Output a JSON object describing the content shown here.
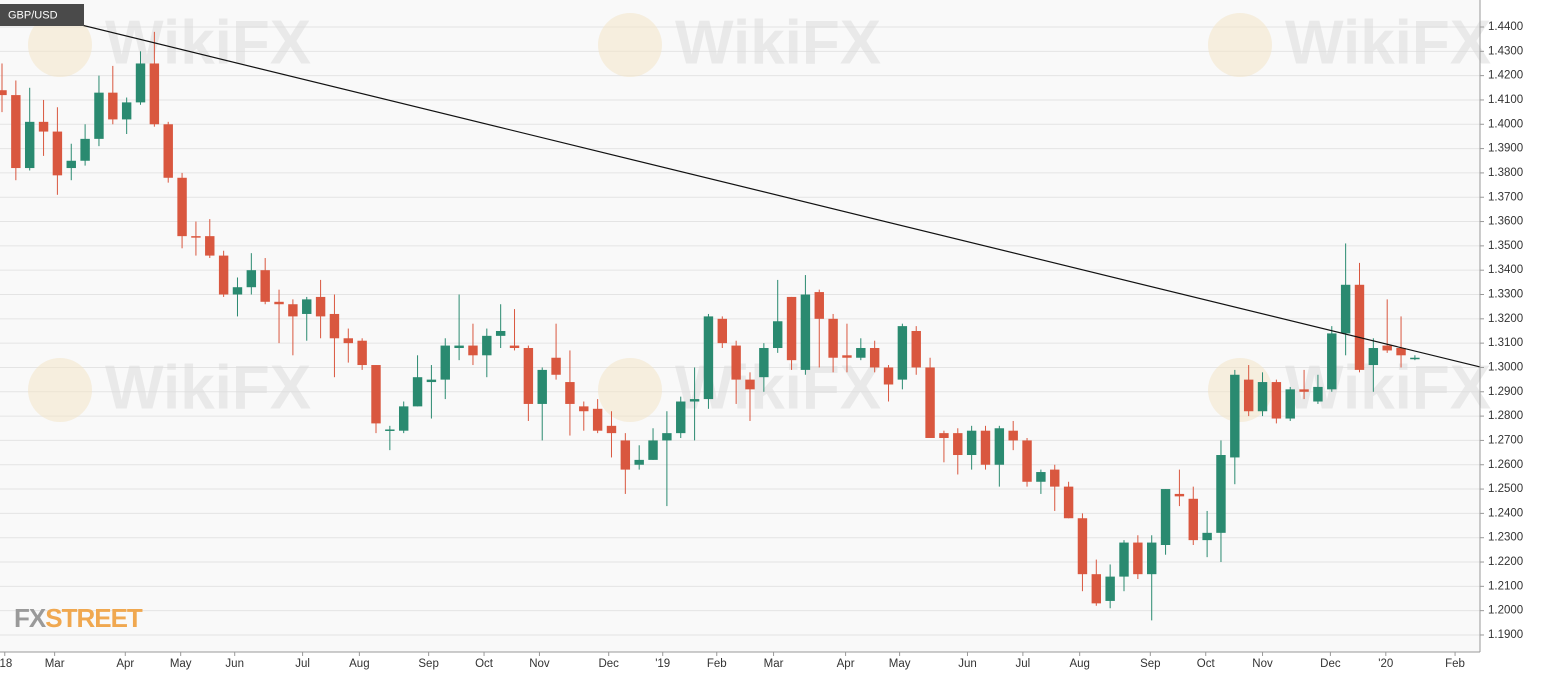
{
  "chart_data": {
    "type": "candlestick",
    "title": "GBP/USD",
    "watermark": "WikiFX",
    "logo": [
      "FX",
      "STREET"
    ],
    "up_color": "#2a8a70",
    "down_color": "#d9573f",
    "trend_color": "#111111",
    "grid": true,
    "xlim": [
      -0.144,
      106.7
    ],
    "ylim": [
      1.183,
      1.4511
    ],
    "open": [
      1.414,
      1.412,
      1.382,
      1.401,
      1.397,
      1.382,
      1.385,
      1.394,
      1.413,
      1.402,
      1.409,
      1.425,
      1.4,
      1.378,
      1.354,
      1.354,
      1.346,
      1.33,
      1.333,
      1.34,
      1.327,
      1.326,
      1.322,
      1.329,
      1.322,
      1.312,
      1.311,
      1.301,
      1.274,
      1.274,
      1.284,
      1.294,
      1.295,
      1.308,
      1.309,
      1.305,
      1.313,
      1.309,
      1.308,
      1.285,
      1.304,
      1.294,
      1.284,
      1.283,
      1.276,
      1.27,
      1.26,
      1.262,
      1.27,
      1.273,
      1.286,
      1.287,
      1.32,
      1.309,
      1.295,
      1.296,
      1.308,
      1.329,
      1.299,
      1.331,
      1.32,
      1.305,
      1.304,
      1.308,
      1.3,
      1.295,
      1.315,
      1.3,
      1.273,
      1.273,
      1.264,
      1.274,
      1.26,
      1.274,
      1.27,
      1.253,
      1.258,
      1.251,
      1.238,
      1.215,
      1.204,
      1.214,
      1.228,
      1.215,
      1.227,
      1.248,
      1.246,
      1.229,
      1.232,
      1.263,
      1.295,
      1.282,
      1.294,
      1.279,
      1.291,
      1.286,
      1.291,
      1.314,
      1.334,
      1.301,
      1.309,
      1.308,
      1.3035
    ],
    "high": [
      1.425,
      1.418,
      1.415,
      1.41,
      1.407,
      1.392,
      1.4,
      1.42,
      1.424,
      1.411,
      1.43,
      1.438,
      1.401,
      1.38,
      1.36,
      1.361,
      1.348,
      1.337,
      1.347,
      1.345,
      1.332,
      1.328,
      1.329,
      1.336,
      1.33,
      1.316,
      1.312,
      1.301,
      1.276,
      1.286,
      1.305,
      1.301,
      1.312,
      1.33,
      1.318,
      1.316,
      1.326,
      1.324,
      1.309,
      1.3,
      1.318,
      1.307,
      1.286,
      1.287,
      1.282,
      1.273,
      1.268,
      1.275,
      1.282,
      1.288,
      1.3,
      1.322,
      1.321,
      1.311,
      1.298,
      1.31,
      1.336,
      1.329,
      1.338,
      1.332,
      1.322,
      1.318,
      1.312,
      1.311,
      1.301,
      1.318,
      1.317,
      1.304,
      1.274,
      1.275,
      1.276,
      1.276,
      1.276,
      1.278,
      1.271,
      1.258,
      1.26,
      1.253,
      1.24,
      1.221,
      1.219,
      1.229,
      1.231,
      1.231,
      1.25,
      1.258,
      1.251,
      1.241,
      1.27,
      1.299,
      1.301,
      1.298,
      1.295,
      1.292,
      1.299,
      1.297,
      1.317,
      1.351,
      1.343,
      1.312,
      1.328,
      1.321,
      1.305
    ],
    "low": [
      1.405,
      1.377,
      1.381,
      1.387,
      1.371,
      1.377,
      1.383,
      1.391,
      1.4,
      1.396,
      1.408,
      1.399,
      1.376,
      1.349,
      1.346,
      1.345,
      1.329,
      1.321,
      1.33,
      1.326,
      1.31,
      1.305,
      1.311,
      1.312,
      1.296,
      1.302,
      1.299,
      1.273,
      1.266,
      1.273,
      1.284,
      1.279,
      1.287,
      1.303,
      1.301,
      1.296,
      1.308,
      1.307,
      1.278,
      1.27,
      1.295,
      1.272,
      1.274,
      1.273,
      1.263,
      1.248,
      1.258,
      1.262,
      1.243,
      1.271,
      1.27,
      1.283,
      1.308,
      1.285,
      1.278,
      1.29,
      1.306,
      1.299,
      1.297,
      1.3,
      1.298,
      1.298,
      1.303,
      1.298,
      1.286,
      1.291,
      1.297,
      1.271,
      1.261,
      1.256,
      1.258,
      1.258,
      1.251,
      1.266,
      1.251,
      1.248,
      1.241,
      1.238,
      1.208,
      1.202,
      1.201,
      1.208,
      1.213,
      1.196,
      1.223,
      1.243,
      1.227,
      1.222,
      1.22,
      1.252,
      1.28,
      1.28,
      1.277,
      1.278,
      1.287,
      1.285,
      1.29,
      1.305,
      1.298,
      1.29,
      1.306,
      1.3,
      1.303
    ],
    "close": [
      1.412,
      1.382,
      1.401,
      1.397,
      1.379,
      1.385,
      1.394,
      1.413,
      1.402,
      1.409,
      1.425,
      1.4,
      1.378,
      1.354,
      1.3535,
      1.346,
      1.33,
      1.333,
      1.34,
      1.327,
      1.326,
      1.321,
      1.328,
      1.321,
      1.312,
      1.31,
      1.301,
      1.277,
      1.2745,
      1.284,
      1.296,
      1.295,
      1.309,
      1.309,
      1.305,
      1.313,
      1.315,
      1.308,
      1.285,
      1.299,
      1.297,
      1.285,
      1.282,
      1.274,
      1.273,
      1.258,
      1.262,
      1.27,
      1.273,
      1.286,
      1.287,
      1.321,
      1.31,
      1.295,
      1.291,
      1.308,
      1.319,
      1.303,
      1.33,
      1.32,
      1.304,
      1.304,
      1.308,
      1.3,
      1.293,
      1.317,
      1.3,
      1.271,
      1.271,
      1.264,
      1.274,
      1.26,
      1.275,
      1.27,
      1.253,
      1.257,
      1.251,
      1.238,
      1.215,
      1.203,
      1.214,
      1.228,
      1.215,
      1.228,
      1.25,
      1.247,
      1.229,
      1.232,
      1.264,
      1.297,
      1.282,
      1.294,
      1.279,
      1.291,
      1.29,
      1.292,
      1.314,
      1.334,
      1.299,
      1.308,
      1.307,
      1.305,
      1.304
    ],
    "trendline": {
      "x": [
        -0.144,
        106.7
      ],
      "y": [
        1.449,
        1.3002
      ]
    },
    "yticks": [
      {
        "value": 1.19,
        "label": "1.1900"
      },
      {
        "value": 1.2,
        "label": "1.2000"
      },
      {
        "value": 1.21,
        "label": "1.2100"
      },
      {
        "value": 1.22,
        "label": "1.2200"
      },
      {
        "value": 1.23,
        "label": "1.2300"
      },
      {
        "value": 1.24,
        "label": "1.2400"
      },
      {
        "value": 1.25,
        "label": "1.2500"
      },
      {
        "value": 1.26,
        "label": "1.2600"
      },
      {
        "value": 1.27,
        "label": "1.2700"
      },
      {
        "value": 1.28,
        "label": "1.2800"
      },
      {
        "value": 1.29,
        "label": "1.2900"
      },
      {
        "value": 1.3,
        "label": "1.3000"
      },
      {
        "value": 1.31,
        "label": "1.3100"
      },
      {
        "value": 1.32,
        "label": "1.3200"
      },
      {
        "value": 1.33,
        "label": "1.3300"
      },
      {
        "value": 1.34,
        "label": "1.3400"
      },
      {
        "value": 1.35,
        "label": "1.3500"
      },
      {
        "value": 1.36,
        "label": "1.3600"
      },
      {
        "value": 1.37,
        "label": "1.3700"
      },
      {
        "value": 1.38,
        "label": "1.3800"
      },
      {
        "value": 1.39,
        "label": "1.3900"
      },
      {
        "value": 1.4,
        "label": "1.4000"
      },
      {
        "value": 1.41,
        "label": "1.4100"
      },
      {
        "value": 1.42,
        "label": "1.4200"
      },
      {
        "value": 1.43,
        "label": "1.4300"
      },
      {
        "value": 1.44,
        "label": "1.4400"
      }
    ],
    "xticks": [
      {
        "value": 0.2,
        "label": "'18"
      },
      {
        "value": 3.8,
        "label": "Mar"
      },
      {
        "value": 8.9,
        "label": "Apr"
      },
      {
        "value": 12.9,
        "label": "May"
      },
      {
        "value": 16.8,
        "label": "Jun"
      },
      {
        "value": 21.7,
        "label": "Jul"
      },
      {
        "value": 25.8,
        "label": "Aug"
      },
      {
        "value": 30.8,
        "label": "Sep"
      },
      {
        "value": 34.8,
        "label": "Oct"
      },
      {
        "value": 38.8,
        "label": "Nov"
      },
      {
        "value": 43.8,
        "label": "Dec"
      },
      {
        "value": 47.7,
        "label": "'19"
      },
      {
        "value": 51.6,
        "label": "Feb"
      },
      {
        "value": 55.7,
        "label": "Mar"
      },
      {
        "value": 60.9,
        "label": "Apr"
      },
      {
        "value": 64.8,
        "label": "May"
      },
      {
        "value": 69.7,
        "label": "Jun"
      },
      {
        "value": 73.7,
        "label": "Jul"
      },
      {
        "value": 77.8,
        "label": "Aug"
      },
      {
        "value": 82.9,
        "label": "Sep"
      },
      {
        "value": 86.9,
        "label": "Oct"
      },
      {
        "value": 91.0,
        "label": "Nov"
      },
      {
        "value": 95.9,
        "label": "Dec"
      },
      {
        "value": 99.9,
        "label": "'20"
      },
      {
        "value": 104.9,
        "label": "Feb"
      }
    ]
  }
}
